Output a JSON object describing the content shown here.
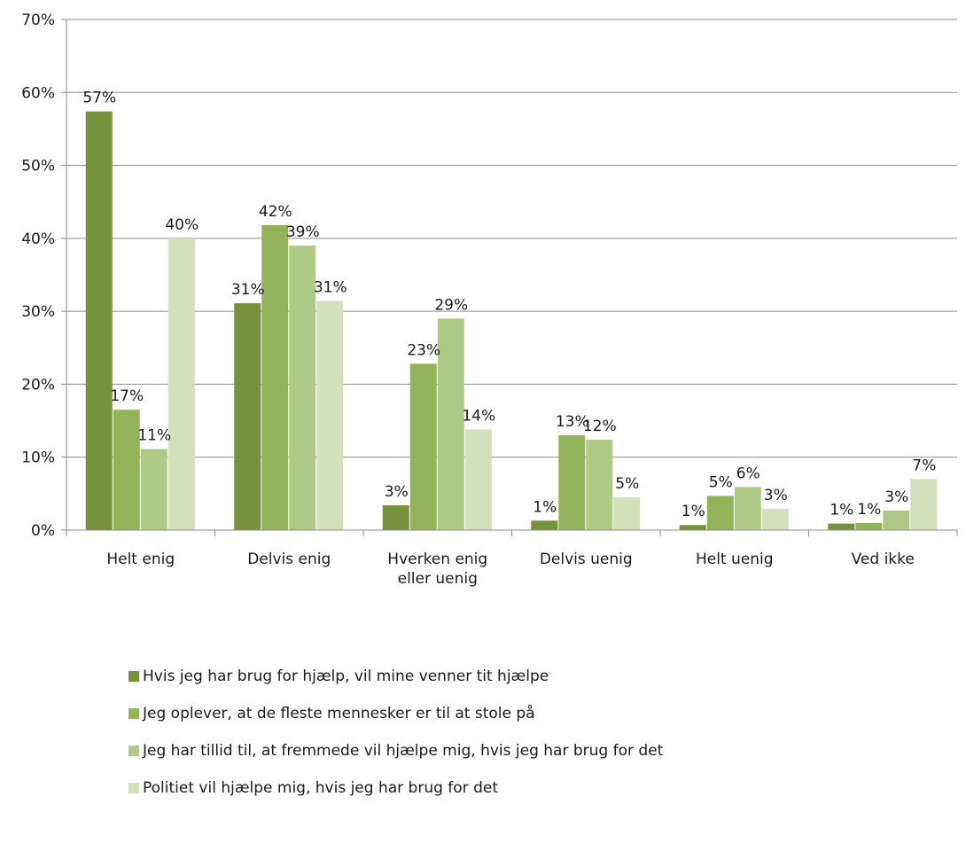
{
  "chart_data": {
    "type": "bar",
    "categories": [
      "Helt enig",
      "Delvis enig",
      "Hverken enig\neller uenig",
      "Delvis uenig",
      "Helt uenig",
      "Ved ikke"
    ],
    "series": [
      {
        "name": "Hvis jeg har brug for hjælp, vil mine venner tit hjælpe",
        "color": "#76923c",
        "values": [
          57.4,
          31.1,
          3.4,
          1.3,
          0.7,
          0.9
        ],
        "labels": [
          "57%",
          "31%",
          "3%",
          "1%",
          "1%",
          "1%"
        ]
      },
      {
        "name": "Jeg oplever, at de fleste mennesker er til at stole på",
        "color": "#92b35a",
        "values": [
          16.5,
          41.8,
          22.8,
          13.0,
          4.7,
          1.0
        ],
        "labels": [
          "17%",
          "42%",
          "23%",
          "13%",
          "5%",
          "1%"
        ]
      },
      {
        "name": "Jeg har tillid til, at fremmede vil hjælpe mig, hvis jeg har brug for det",
        "color": "#afc986",
        "values": [
          11.1,
          39.0,
          29.0,
          12.4,
          5.9,
          2.7
        ],
        "labels": [
          "11%",
          "39%",
          "29%",
          "12%",
          "6%",
          "3%"
        ]
      },
      {
        "name": "Politiet vil hjælpe mig, hvis jeg har brug for det",
        "color": "#d2e0bb",
        "values": [
          40.0,
          31.4,
          13.8,
          4.5,
          2.9,
          7.0
        ],
        "labels": [
          "40%",
          "31%",
          "14%",
          "5%",
          "3%",
          "7%"
        ]
      }
    ],
    "yticks": [
      "0%",
      "10%",
      "20%",
      "30%",
      "40%",
      "50%",
      "60%",
      "70%"
    ],
    "ylim": [
      0,
      70
    ],
    "grid": true,
    "legend_position": "bottom"
  }
}
